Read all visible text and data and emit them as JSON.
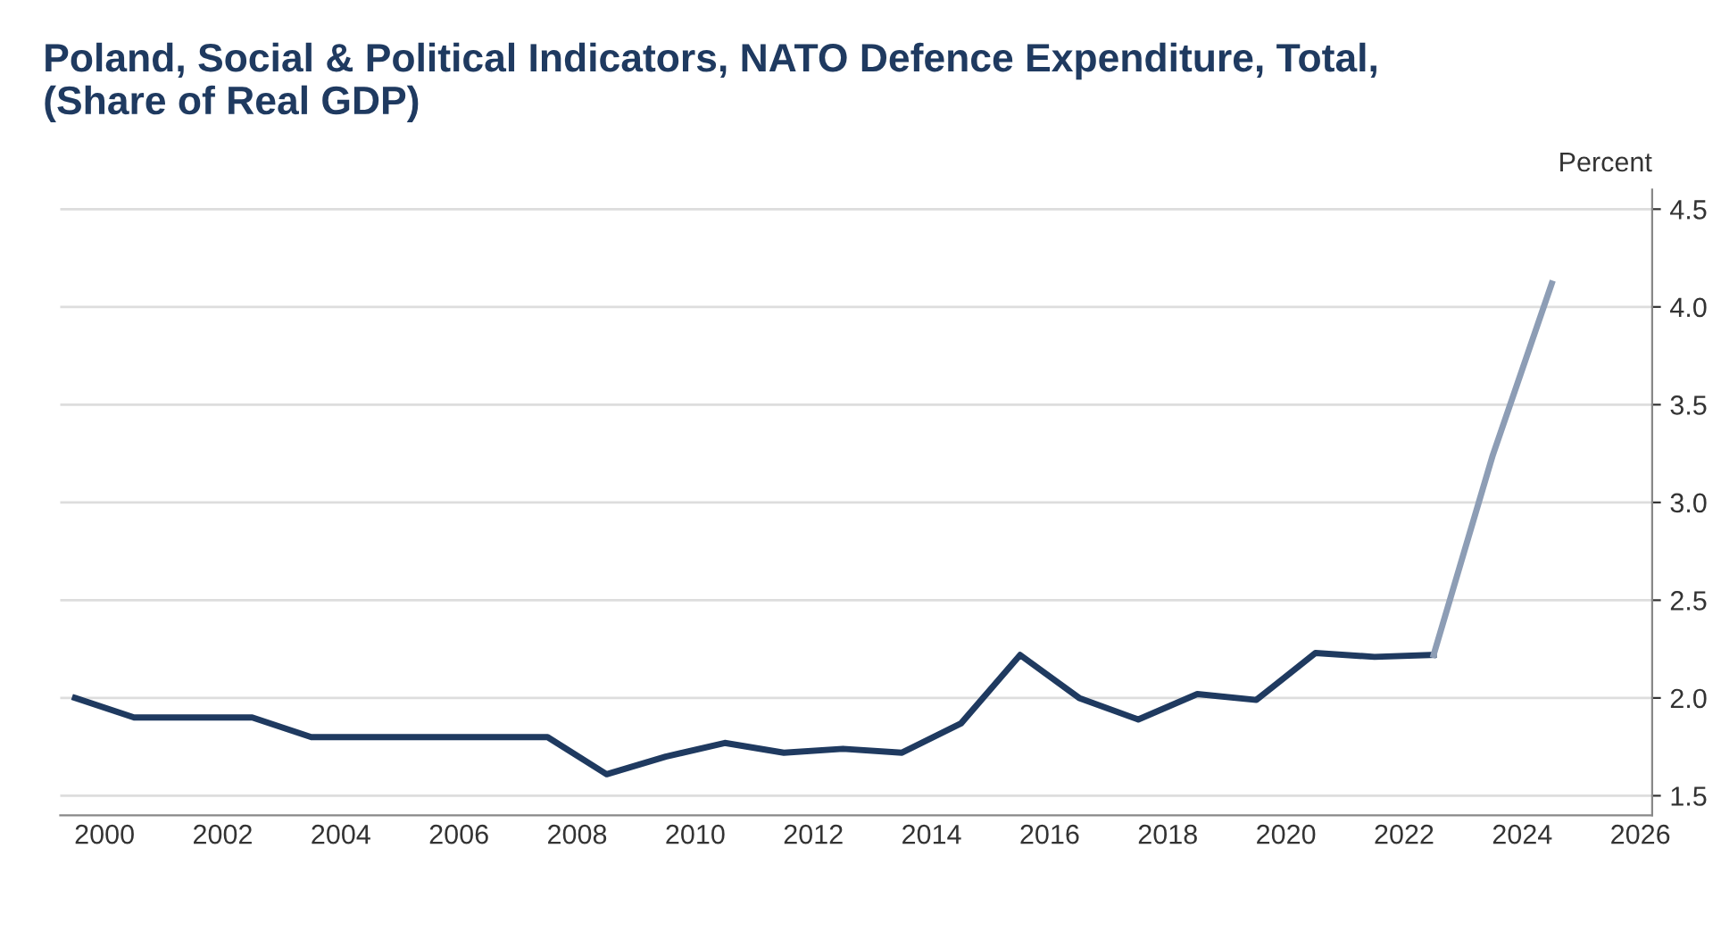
{
  "chart_data": {
    "type": "line",
    "title": "Poland, Social & Political Indicators, NATO Defence Expenditure, Total,\n(Share of Real GDP)",
    "ylabel": "Percent",
    "series": [
      {
        "color": "#1f3a60",
        "x": [
          1999.5,
          2000.5,
          2001.5,
          2002.5,
          2003.5,
          2004.5,
          2005.5,
          2006.5,
          2007.5,
          2008.5,
          2009.5,
          2010.5,
          2011.5,
          2012.5,
          2013.5,
          2014.5,
          2015.5,
          2016.5,
          2017.5,
          2018.5,
          2019.5,
          2020.5,
          2021.5,
          2022.5
        ],
        "values": [
          2.0,
          1.9,
          1.9,
          1.9,
          1.8,
          1.8,
          1.8,
          1.8,
          1.8,
          1.61,
          1.7,
          1.77,
          1.72,
          1.74,
          1.72,
          1.87,
          2.22,
          2.0,
          1.89,
          2.02,
          1.99,
          2.23,
          2.21,
          2.22
        ]
      },
      {
        "color": "#8d9db5",
        "x": [
          2022.5,
          2023.5,
          2024.5
        ],
        "values": [
          2.22,
          3.24,
          4.12
        ]
      }
    ],
    "xlim": [
      1999.25,
      2026.2
    ],
    "xticks": [
      2000,
      2002,
      2004,
      2006,
      2008,
      2010,
      2012,
      2014,
      2016,
      2018,
      2020,
      2022,
      2024,
      2026
    ],
    "ylim": [
      1.4,
      4.6
    ],
    "yticks": [
      1.5,
      {
        "value": 2,
        "label": "2.0"
      },
      2.5,
      {
        "value": 3,
        "label": "3.0"
      },
      3.5,
      {
        "value": 4,
        "label": "4.0"
      },
      4.5
    ],
    "grid": "y",
    "legend": false,
    "marker": "none",
    "line_style": "solid"
  }
}
